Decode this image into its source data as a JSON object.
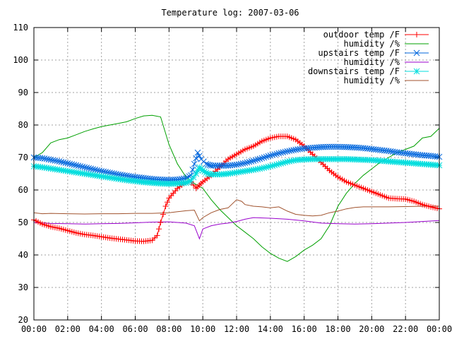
{
  "chart_data": {
    "type": "line",
    "title": "Temperature log: 2007-03-06",
    "xlabel": "",
    "ylabel": "",
    "x_ticks": [
      "00:00",
      "02:00",
      "04:00",
      "06:00",
      "08:00",
      "10:00",
      "12:00",
      "14:00",
      "16:00",
      "18:00",
      "20:00",
      "22:00",
      "00:00"
    ],
    "x_range": [
      0,
      24
    ],
    "y_ticks": [
      20,
      30,
      40,
      50,
      60,
      70,
      80,
      90,
      100,
      110
    ],
    "ylim": [
      20,
      110
    ],
    "grid": true,
    "legend_position": "top-right",
    "series": [
      {
        "name": "outdoor temp /F",
        "color": "#ff0000",
        "marker": "plus",
        "points": [
          [
            0,
            50.8
          ],
          [
            0.5,
            49.5
          ],
          [
            1,
            48.7
          ],
          [
            1.5,
            48.2
          ],
          [
            2,
            47.5
          ],
          [
            2.5,
            46.8
          ],
          [
            3,
            46.3
          ],
          [
            3.5,
            46.0
          ],
          [
            4,
            45.6
          ],
          [
            4.5,
            45.2
          ],
          [
            5,
            44.9
          ],
          [
            5.5,
            44.6
          ],
          [
            6,
            44.3
          ],
          [
            6.5,
            44.2
          ],
          [
            7,
            44.5
          ],
          [
            7.3,
            46.0
          ],
          [
            7.5,
            50.0
          ],
          [
            7.8,
            55.0
          ],
          [
            8,
            57.5
          ],
          [
            8.5,
            60.5
          ],
          [
            9,
            62.5
          ],
          [
            9.3,
            62.5
          ],
          [
            9.6,
            60.5
          ],
          [
            9.8,
            61.5
          ],
          [
            10,
            62.5
          ],
          [
            10.5,
            64.5
          ],
          [
            11,
            67.0
          ],
          [
            11.5,
            69.5
          ],
          [
            12,
            71.0
          ],
          [
            12.5,
            72.5
          ],
          [
            13,
            73.5
          ],
          [
            13.5,
            75.0
          ],
          [
            14,
            76.0
          ],
          [
            14.5,
            76.5
          ],
          [
            15,
            76.5
          ],
          [
            15.5,
            75.5
          ],
          [
            16,
            73.5
          ],
          [
            16.5,
            71.0
          ],
          [
            17,
            68.5
          ],
          [
            17.5,
            66.0
          ],
          [
            18,
            64.0
          ],
          [
            18.5,
            62.5
          ],
          [
            19,
            61.5
          ],
          [
            19.5,
            60.5
          ],
          [
            20,
            59.5
          ],
          [
            20.5,
            58.5
          ],
          [
            21,
            57.5
          ],
          [
            21.5,
            57.3
          ],
          [
            22,
            57.2
          ],
          [
            22.5,
            56.5
          ],
          [
            23,
            55.5
          ],
          [
            23.5,
            54.8
          ],
          [
            24,
            54.2
          ]
        ]
      },
      {
        "name": "humidity /%",
        "color": "#00a000",
        "marker": "none",
        "points": [
          [
            0,
            70.0
          ],
          [
            0.5,
            71.5
          ],
          [
            1,
            74.5
          ],
          [
            1.5,
            75.5
          ],
          [
            2,
            76.0
          ],
          [
            2.5,
            77.0
          ],
          [
            3,
            78.0
          ],
          [
            3.5,
            78.8
          ],
          [
            4,
            79.5
          ],
          [
            4.5,
            80.0
          ],
          [
            5,
            80.5
          ],
          [
            5.5,
            81.0
          ],
          [
            6,
            82.0
          ],
          [
            6.5,
            82.8
          ],
          [
            7,
            83.0
          ],
          [
            7.5,
            82.5
          ],
          [
            8,
            74.0
          ],
          [
            8.5,
            68.0
          ],
          [
            9,
            64.0
          ],
          [
            9.5,
            62.0
          ],
          [
            10,
            60.5
          ],
          [
            10.5,
            57.0
          ],
          [
            11,
            54.0
          ],
          [
            11.5,
            51.5
          ],
          [
            12,
            49.0
          ],
          [
            12.5,
            47.0
          ],
          [
            13,
            45.0
          ],
          [
            13.5,
            42.5
          ],
          [
            14,
            40.5
          ],
          [
            14.5,
            39.0
          ],
          [
            15,
            38.0
          ],
          [
            15.5,
            39.5
          ],
          [
            16,
            41.5
          ],
          [
            16.5,
            43.0
          ],
          [
            17,
            45.0
          ],
          [
            17.5,
            49.0
          ],
          [
            18,
            55.0
          ],
          [
            18.5,
            59.0
          ],
          [
            19,
            62.0
          ],
          [
            19.5,
            64.5
          ],
          [
            20,
            66.5
          ],
          [
            20.5,
            68.5
          ],
          [
            21,
            70.0
          ],
          [
            21.5,
            71.5
          ],
          [
            22,
            72.5
          ],
          [
            22.5,
            73.5
          ],
          [
            23,
            76.0
          ],
          [
            23.5,
            76.5
          ],
          [
            24,
            79.0
          ]
        ]
      },
      {
        "name": "upstairs temp /F",
        "color": "#0066dd",
        "marker": "cross",
        "points": [
          [
            0,
            70.0
          ],
          [
            0.5,
            69.8
          ],
          [
            1,
            69.3
          ],
          [
            1.5,
            68.8
          ],
          [
            2,
            68.2
          ],
          [
            2.5,
            67.6
          ],
          [
            3,
            67.0
          ],
          [
            3.5,
            66.4
          ],
          [
            4,
            65.8
          ],
          [
            4.5,
            65.3
          ],
          [
            5,
            64.8
          ],
          [
            5.5,
            64.4
          ],
          [
            6,
            64.0
          ],
          [
            6.5,
            63.7
          ],
          [
            7,
            63.4
          ],
          [
            7.5,
            63.2
          ],
          [
            8,
            63.1
          ],
          [
            8.5,
            63.2
          ],
          [
            9,
            63.6
          ],
          [
            9.3,
            64.5
          ],
          [
            9.5,
            68.0
          ],
          [
            9.7,
            71.5
          ],
          [
            9.9,
            69.5
          ],
          [
            10.2,
            68.0
          ],
          [
            10.5,
            67.5
          ],
          [
            11,
            67.5
          ],
          [
            11.5,
            67.5
          ],
          [
            12,
            67.8
          ],
          [
            12.5,
            68.3
          ],
          [
            13,
            69.0
          ],
          [
            13.5,
            69.8
          ],
          [
            14,
            70.6
          ],
          [
            14.5,
            71.3
          ],
          [
            15,
            71.9
          ],
          [
            15.5,
            72.4
          ],
          [
            16,
            72.8
          ],
          [
            16.5,
            73.0
          ],
          [
            17,
            73.2
          ],
          [
            17.5,
            73.3
          ],
          [
            18,
            73.3
          ],
          [
            18.5,
            73.2
          ],
          [
            19,
            73.1
          ],
          [
            19.5,
            72.9
          ],
          [
            20,
            72.6
          ],
          [
            20.5,
            72.3
          ],
          [
            21,
            72.0
          ],
          [
            21.5,
            71.6
          ],
          [
            22,
            71.3
          ],
          [
            22.5,
            71.0
          ],
          [
            23,
            70.7
          ],
          [
            23.5,
            70.5
          ],
          [
            24,
            70.2
          ]
        ]
      },
      {
        "name": "humidity /%",
        "color": "#9900cc",
        "marker": "none",
        "points": [
          [
            0,
            50.0
          ],
          [
            1,
            49.7
          ],
          [
            2,
            49.6
          ],
          [
            3,
            49.5
          ],
          [
            4,
            49.6
          ],
          [
            5,
            49.7
          ],
          [
            6,
            49.9
          ],
          [
            7,
            50.1
          ],
          [
            8,
            50.2
          ],
          [
            8.5,
            50.0
          ],
          [
            9,
            49.8
          ],
          [
            9.5,
            49.0
          ],
          [
            9.8,
            45.0
          ],
          [
            10,
            48.0
          ],
          [
            10.5,
            49.0
          ],
          [
            11,
            49.5
          ],
          [
            11.5,
            49.8
          ],
          [
            12,
            50.3
          ],
          [
            12.5,
            51.0
          ],
          [
            13,
            51.5
          ],
          [
            14,
            51.3
          ],
          [
            15,
            51.0
          ],
          [
            16,
            50.5
          ],
          [
            17,
            49.8
          ],
          [
            18,
            49.6
          ],
          [
            19,
            49.5
          ],
          [
            20,
            49.6
          ],
          [
            21,
            49.8
          ],
          [
            22,
            50.0
          ],
          [
            23,
            50.3
          ],
          [
            24,
            50.6
          ]
        ]
      },
      {
        "name": "downstairs temp /F",
        "color": "#00dddd",
        "marker": "star",
        "points": [
          [
            0,
            67.3
          ],
          [
            0.5,
            67.0
          ],
          [
            1,
            66.6
          ],
          [
            1.5,
            66.2
          ],
          [
            2,
            65.8
          ],
          [
            2.5,
            65.4
          ],
          [
            3,
            65.0
          ],
          [
            3.5,
            64.6
          ],
          [
            4,
            64.2
          ],
          [
            4.5,
            63.8
          ],
          [
            5,
            63.4
          ],
          [
            5.5,
            63.0
          ],
          [
            6,
            62.7
          ],
          [
            6.5,
            62.4
          ],
          [
            7,
            62.2
          ],
          [
            7.5,
            62.0
          ],
          [
            8,
            61.9
          ],
          [
            8.5,
            62.0
          ],
          [
            9,
            62.2
          ],
          [
            9.3,
            62.8
          ],
          [
            9.6,
            65.0
          ],
          [
            9.8,
            67.0
          ],
          [
            10,
            66.0
          ],
          [
            10.3,
            65.0
          ],
          [
            10.5,
            64.8
          ],
          [
            11,
            64.8
          ],
          [
            11.5,
            65.0
          ],
          [
            12,
            65.4
          ],
          [
            12.5,
            65.8
          ],
          [
            13,
            66.2
          ],
          [
            13.5,
            66.7
          ],
          [
            14,
            67.3
          ],
          [
            14.5,
            68.0
          ],
          [
            15,
            68.7
          ],
          [
            15.5,
            69.2
          ],
          [
            16,
            69.4
          ],
          [
            16.5,
            69.5
          ],
          [
            17,
            69.5
          ],
          [
            17.5,
            69.5
          ],
          [
            18,
            69.5
          ],
          [
            18.5,
            69.5
          ],
          [
            19,
            69.4
          ],
          [
            19.5,
            69.3
          ],
          [
            20,
            69.2
          ],
          [
            20.5,
            69.0
          ],
          [
            21,
            68.8
          ],
          [
            21.5,
            68.6
          ],
          [
            22,
            68.4
          ],
          [
            22.5,
            68.2
          ],
          [
            23,
            68.0
          ],
          [
            23.5,
            67.8
          ],
          [
            24,
            67.6
          ]
        ]
      },
      {
        "name": "humidity /%",
        "color": "#a0522d",
        "marker": "none",
        "points": [
          [
            0,
            53.0
          ],
          [
            0.5,
            52.7
          ],
          [
            1,
            52.8
          ],
          [
            2,
            52.7
          ],
          [
            3,
            52.6
          ],
          [
            4,
            52.7
          ],
          [
            5,
            52.7
          ],
          [
            6,
            52.8
          ],
          [
            7,
            52.8
          ],
          [
            8,
            53.0
          ],
          [
            8.5,
            53.3
          ],
          [
            9,
            53.6
          ],
          [
            9.5,
            53.8
          ],
          [
            9.8,
            50.5
          ],
          [
            10,
            51.5
          ],
          [
            10.5,
            53.0
          ],
          [
            11,
            54.0
          ],
          [
            11.5,
            54.5
          ],
          [
            12,
            57.0
          ],
          [
            12.3,
            56.5
          ],
          [
            12.5,
            55.5
          ],
          [
            13,
            55.0
          ],
          [
            13.5,
            54.8
          ],
          [
            14,
            54.5
          ],
          [
            14.5,
            54.8
          ],
          [
            15,
            53.5
          ],
          [
            15.5,
            52.5
          ],
          [
            16,
            52.2
          ],
          [
            16.5,
            52.0
          ],
          [
            17,
            52.2
          ],
          [
            17.5,
            53.0
          ],
          [
            18,
            53.5
          ],
          [
            18.5,
            54.2
          ],
          [
            19,
            54.6
          ],
          [
            19.5,
            54.8
          ],
          [
            20,
            54.8
          ],
          [
            21,
            54.8
          ],
          [
            22,
            54.9
          ],
          [
            23,
            55.0
          ],
          [
            24,
            55.0
          ]
        ]
      }
    ]
  }
}
